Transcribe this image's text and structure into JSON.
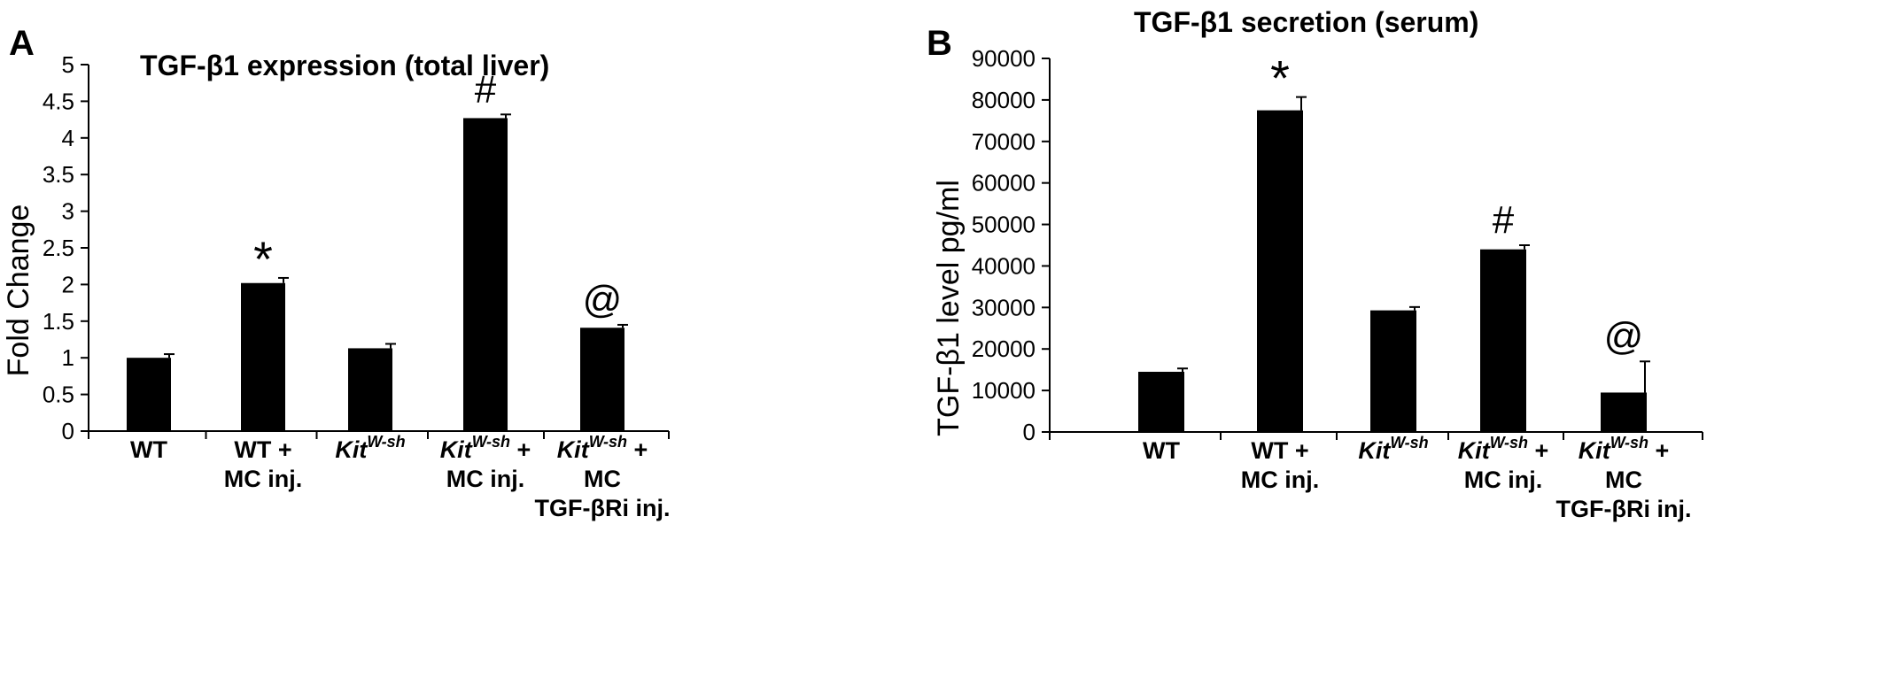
{
  "chart_data": [
    {
      "panel": "A",
      "type": "bar",
      "title": "TGF-β1 expression (total liver)",
      "ylabel": "Fold Change",
      "ylim": [
        0,
        5
      ],
      "yticks": [
        "0",
        "0.5",
        "1",
        "1.5",
        "2",
        "2.5",
        "3",
        "3.5",
        "4",
        "4.5",
        "5"
      ],
      "categories": [
        {
          "lines": [
            [
              {
                "t": "WT"
              }
            ]
          ]
        },
        {
          "lines": [
            [
              {
                "t": "WT +"
              }
            ],
            [
              {
                "t": "MC inj."
              }
            ]
          ]
        },
        {
          "lines": [
            [
              {
                "t": "Kit",
                "i": true
              },
              {
                "t": "W-sh",
                "sup": true
              }
            ]
          ]
        },
        {
          "lines": [
            [
              {
                "t": "Kit",
                "i": true
              },
              {
                "t": "W-sh",
                "sup": true
              },
              {
                "t": " +"
              }
            ],
            [
              {
                "t": "MC inj."
              }
            ]
          ]
        },
        {
          "lines": [
            [
              {
                "t": "Kit",
                "i": true
              },
              {
                "t": "W-sh",
                "sup": true
              },
              {
                "t": " +"
              }
            ],
            [
              {
                "t": "MC"
              }
            ],
            [
              {
                "t": "TGF-βRi inj."
              }
            ]
          ]
        }
      ],
      "values": [
        1.0,
        2.02,
        1.13,
        4.27,
        1.41
      ],
      "errors": [
        0.05,
        0.07,
        0.06,
        0.05,
        0.04
      ],
      "annotations": [
        "",
        "*",
        "",
        "#",
        "@"
      ],
      "bar_color": "#000000"
    },
    {
      "panel": "B",
      "type": "bar",
      "title": "TGF-β1 secretion (serum)",
      "ylabel": "TGF-β1 level pg/ml",
      "ylim": [
        0,
        90000
      ],
      "yticks": [
        "0",
        "10000",
        "20000",
        "30000",
        "40000",
        "50000",
        "60000",
        "70000",
        "80000",
        "90000"
      ],
      "categories": [
        {
          "lines": [
            [
              {
                "t": "WT"
              }
            ]
          ]
        },
        {
          "lines": [
            [
              {
                "t": "WT +"
              }
            ],
            [
              {
                "t": "MC inj."
              }
            ]
          ]
        },
        {
          "lines": [
            [
              {
                "t": "Kit",
                "i": true
              },
              {
                "t": "W-sh",
                "sup": true
              }
            ]
          ]
        },
        {
          "lines": [
            [
              {
                "t": "Kit",
                "i": true
              },
              {
                "t": "W-sh",
                "sup": true
              },
              {
                "t": " +"
              }
            ],
            [
              {
                "t": "MC inj."
              }
            ]
          ]
        },
        {
          "lines": [
            [
              {
                "t": "Kit",
                "i": true
              },
              {
                "t": "W-sh",
                "sup": true
              },
              {
                "t": " +"
              }
            ],
            [
              {
                "t": "MC"
              }
            ],
            [
              {
                "t": "TGF-βRi inj."
              }
            ]
          ]
        }
      ],
      "values": [
        14500,
        77500,
        29300,
        44000,
        9500
      ],
      "errors": [
        800,
        3200,
        800,
        1000,
        7500
      ],
      "annotations": [
        "",
        "*",
        "",
        "#",
        "@"
      ],
      "bar_color": "#000000"
    }
  ]
}
